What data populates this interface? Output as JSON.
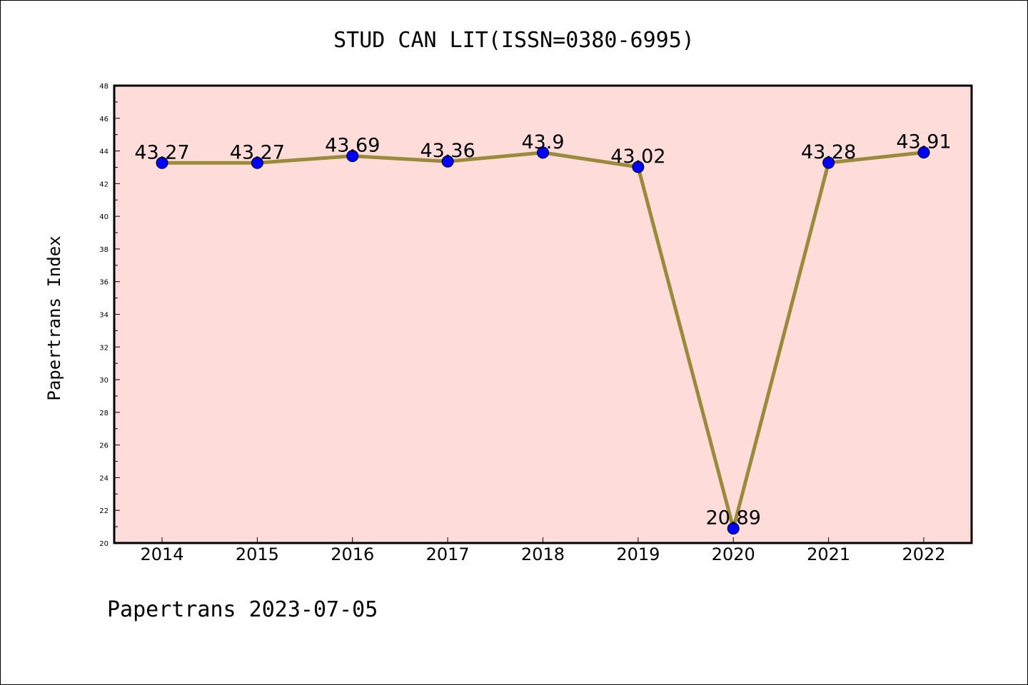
{
  "chart_data": {
    "type": "line",
    "title": "STUD CAN LIT(ISSN=0380-6995)",
    "xlabel": "",
    "ylabel": "Papertrans Index",
    "footer": "Papertrans 2023-07-05",
    "categories": [
      "2014",
      "2015",
      "2016",
      "2017",
      "2018",
      "2019",
      "2020",
      "2021",
      "2022"
    ],
    "series": [
      {
        "values": [
          43.27,
          43.27,
          43.69,
          43.36,
          43.9,
          43.02,
          20.89,
          43.28,
          43.91
        ],
        "labels": [
          "43.27",
          "43.27",
          "43.69",
          "43.36",
          "43.9",
          "43.02",
          "20.89",
          "43.28",
          "43.91"
        ]
      }
    ],
    "ylim": [
      20,
      48
    ],
    "yticks": [
      "20",
      "22",
      "24",
      "26",
      "28",
      "30",
      "32",
      "34",
      "36",
      "38",
      "40",
      "42",
      "44",
      "46",
      "48"
    ],
    "grid": false,
    "legend": "none",
    "colors": {
      "plot_background": "#fddcda",
      "line": "#998a3c",
      "marker": "#0000ff",
      "axes": "#000000"
    }
  }
}
